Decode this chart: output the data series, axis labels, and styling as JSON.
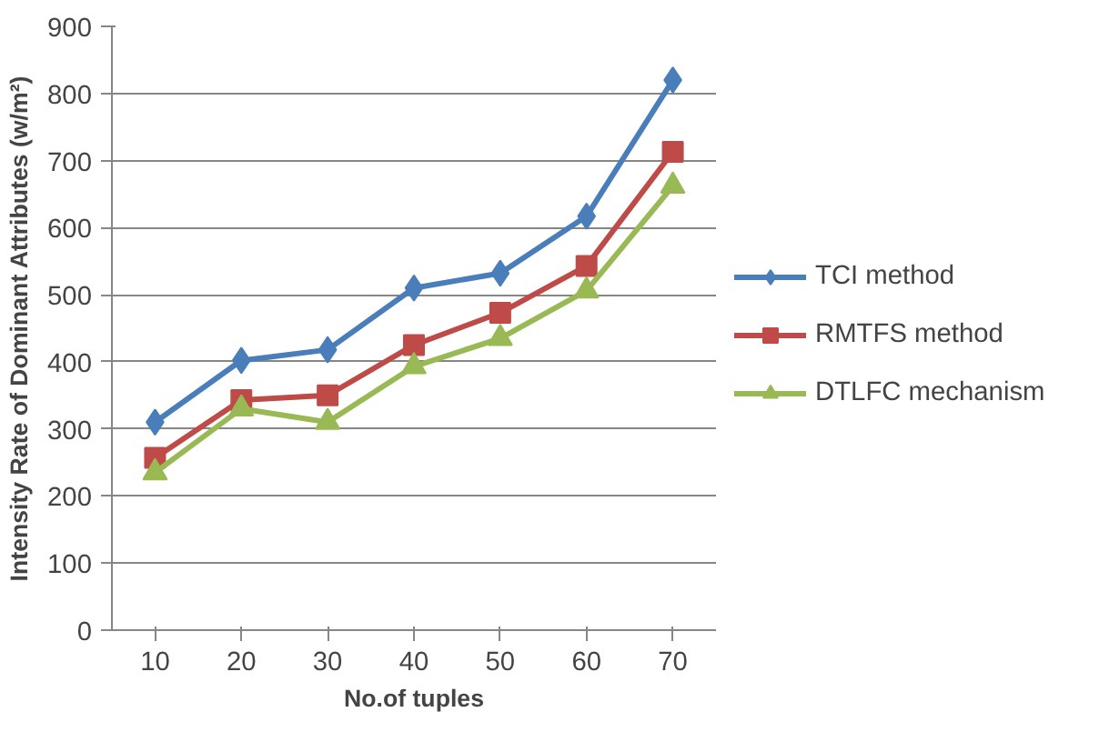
{
  "chart_data": {
    "type": "line",
    "xlabel": "No.of tuples",
    "ylabel": "Intensity Rate of Dominant Attributes (w/m²)",
    "categories": [
      "10",
      "20",
      "30",
      "40",
      "50",
      "60",
      "70"
    ],
    "series": [
      {
        "name": "TCI method",
        "color": "#4a7ebb",
        "marker": "diamond",
        "values": [
          310,
          402,
          418,
          510,
          532,
          617,
          820
        ]
      },
      {
        "name": "RMTFS method",
        "color": "#be4b48",
        "marker": "square",
        "values": [
          257,
          343,
          350,
          425,
          473,
          543,
          713
        ]
      },
      {
        "name": "DTLFC mechanism",
        "color": "#98b954",
        "marker": "triangle",
        "values": [
          235,
          330,
          310,
          393,
          435,
          506,
          662
        ]
      }
    ],
    "ylim": [
      0,
      900
    ],
    "yticks": [
      0,
      100,
      200,
      300,
      400,
      500,
      600,
      700,
      800,
      900
    ],
    "grid": "y",
    "legend": "right",
    "line_style": "solid"
  }
}
